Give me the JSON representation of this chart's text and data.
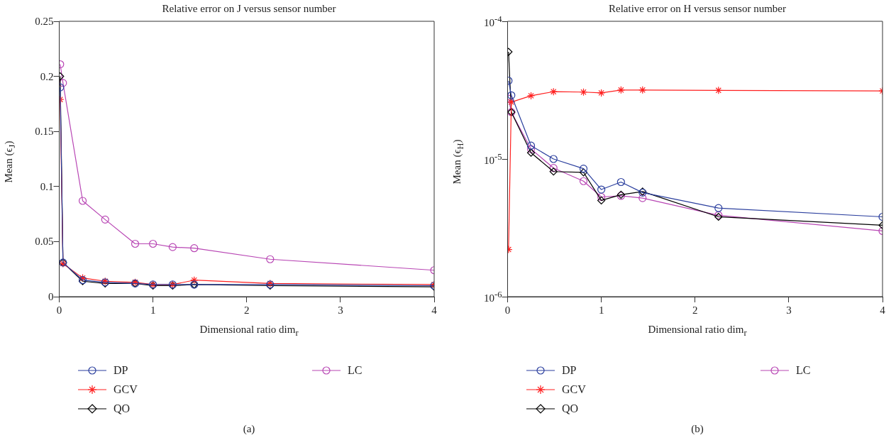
{
  "chart_data": [
    {
      "type": "line",
      "title": "Relative error on J versus sensor number",
      "xlabel": "Dimensional ratio dim$_{r}$",
      "ylabel": "Mean (ϵ$_{J}$)",
      "xlim": [
        0,
        4
      ],
      "xticks": [
        0,
        1,
        2,
        3,
        4
      ],
      "ylim": [
        0,
        0.25
      ],
      "yticks": [
        0,
        0.05,
        0.1,
        0.15,
        0.2,
        0.25
      ],
      "grid": false,
      "legend": "bottom",
      "annotations": [
        "(a)"
      ],
      "x": [
        0.01,
        0.04,
        0.25,
        0.49,
        0.81,
        1,
        1.21,
        1.44,
        2.25,
        4
      ],
      "series": [
        {
          "name": "DP",
          "color": "#2b3f9e",
          "marker": "circle",
          "values": [
            0.19,
            0.031,
            0.015,
            0.013,
            0.012,
            0.011,
            0.011,
            0.011,
            0.011,
            0.01
          ]
        },
        {
          "name": "GCV",
          "color": "#ff2020",
          "marker": "cross",
          "values": [
            0.179,
            0.03,
            0.017,
            0.014,
            0.013,
            0.011,
            0.011,
            0.015,
            0.012,
            0.011
          ]
        },
        {
          "name": "QO",
          "color": "#000000",
          "marker": "diamond",
          "values": [
            0.2,
            0.031,
            0.014,
            0.012,
            0.012,
            0.01,
            0.01,
            0.011,
            0.01,
            0.009
          ]
        },
        {
          "name": "LC",
          "color": "#b846b4",
          "marker": "circle",
          "values": [
            0.211,
            0.194,
            0.087,
            0.07,
            0.048,
            0.048,
            0.045,
            0.044,
            0.034,
            0.024
          ]
        }
      ]
    },
    {
      "type": "line",
      "title": "Relative error on H versus sensor number",
      "xlabel": "Dimensional ratio dim$_{r}$",
      "ylabel": "Mean (ϵ$_{H}$)",
      "log": "y",
      "xlim": [
        0,
        4
      ],
      "xticks": [
        0,
        1,
        2,
        3,
        4
      ],
      "ylim": [
        1e-06,
        0.0001
      ],
      "yticks": [
        {
          "value": 1e-06,
          "label": "10$^{-6}$"
        },
        {
          "value": 1e-05,
          "label": "10$^{-5}$"
        },
        {
          "value": 0.0001,
          "label": "10$^{-4}$"
        }
      ],
      "grid": false,
      "legend": "bottom",
      "annotations": [
        "(b)"
      ],
      "x": [
        0.01,
        0.04,
        0.25,
        0.49,
        0.81,
        1,
        1.21,
        1.44,
        2.25,
        4
      ],
      "series": [
        {
          "name": "DP",
          "color": "#2b3f9e",
          "marker": "circle",
          "values": [
            3.7e-05,
            2.9e-05,
            1.25e-05,
            1e-05,
            8.5e-06,
            6e-06,
            6.8e-06,
            5.7e-06,
            4.4e-06,
            3.8e-06
          ]
        },
        {
          "name": "GCV",
          "color": "#ff2020",
          "marker": "cross",
          "values": [
            2.2e-06,
            2.59e-05,
            2.88e-05,
            3.08e-05,
            3.06e-05,
            3.02e-05,
            3.17e-05,
            3.17e-05,
            3.15e-05,
            3.12e-05
          ]
        },
        {
          "name": "QO",
          "color": "#000000",
          "marker": "diamond",
          "values": [
            6e-05,
            2.19e-05,
            1.11e-05,
            8.1e-06,
            8e-06,
            5e-06,
            5.5e-06,
            5.8e-06,
            3.8e-06,
            3.3e-06
          ]
        },
        {
          "name": "LC",
          "color": "#b846b4",
          "marker": "circle",
          "values": [
            2.74e-05,
            2.19e-05,
            1.18e-05,
            8.6e-06,
            6.9e-06,
            5.3e-06,
            5.4e-06,
            5.2e-06,
            3.9e-06,
            3e-06
          ]
        }
      ]
    }
  ]
}
